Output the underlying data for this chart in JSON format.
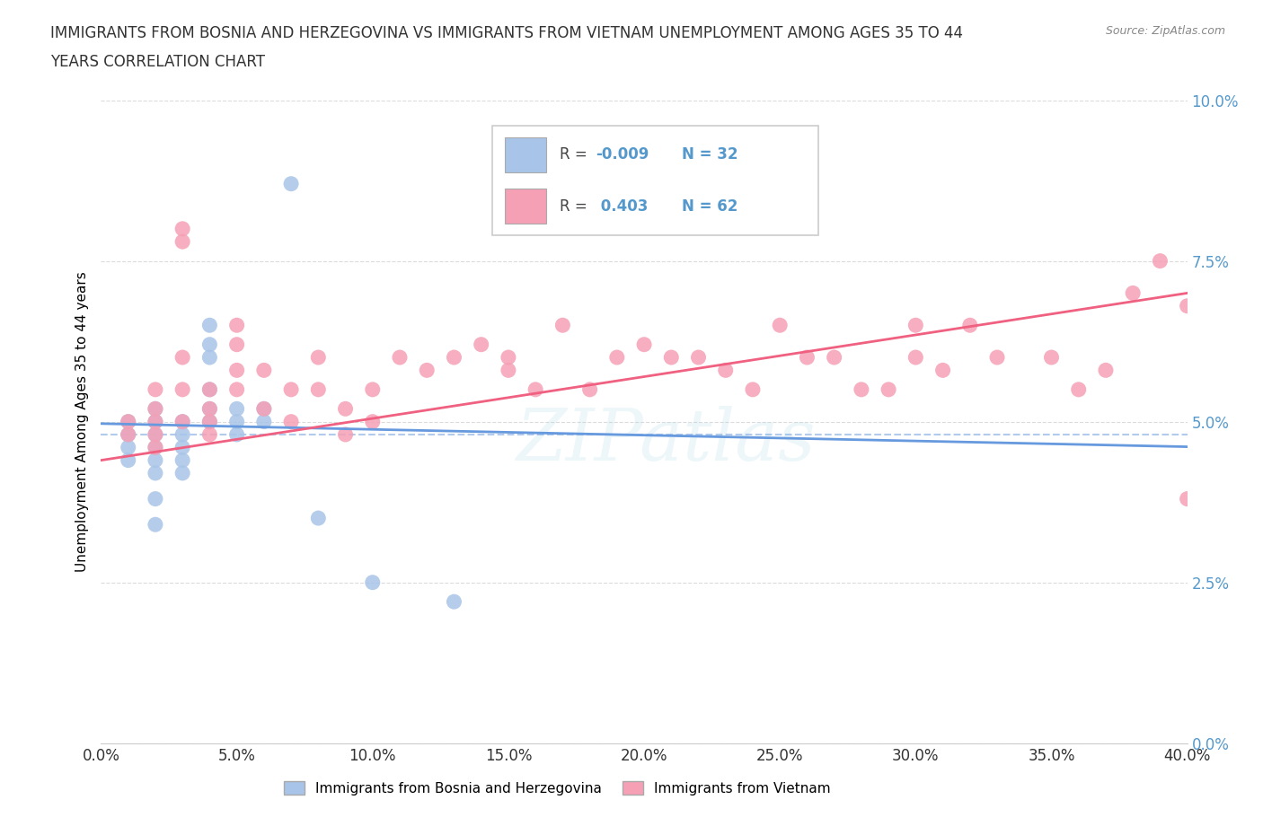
{
  "title": "IMMIGRANTS FROM BOSNIA AND HERZEGOVINA VS IMMIGRANTS FROM VIETNAM UNEMPLOYMENT AMONG AGES 35 TO 44\nYEARS CORRELATION CHART",
  "source_text": "Source: ZipAtlas.com",
  "ylabel": "Unemployment Among Ages 35 to 44 years",
  "xlim": [
    0.0,
    0.4
  ],
  "ylim": [
    0.0,
    0.1
  ],
  "xticks": [
    0.0,
    0.05,
    0.1,
    0.15,
    0.2,
    0.25,
    0.3,
    0.35,
    0.4
  ],
  "yticks": [
    0.0,
    0.025,
    0.05,
    0.075,
    0.1
  ],
  "bosnia_color": "#a8c4e8",
  "vietnam_color": "#f5a0b5",
  "bosnia_line_color": "#6699dd",
  "vietnam_line_color": "#f06080",
  "R_bosnia": -0.009,
  "N_bosnia": 32,
  "R_vietnam": 0.403,
  "N_vietnam": 62,
  "legend_label_bosnia": "Immigrants from Bosnia and Herzegovina",
  "legend_label_vietnam": "Immigrants from Vietnam",
  "watermark": "ZIPatlas",
  "bosnia_x": [
    0.01,
    0.01,
    0.01,
    0.01,
    0.02,
    0.02,
    0.02,
    0.02,
    0.02,
    0.02,
    0.02,
    0.02,
    0.03,
    0.03,
    0.03,
    0.03,
    0.03,
    0.04,
    0.04,
    0.04,
    0.04,
    0.04,
    0.04,
    0.05,
    0.05,
    0.05,
    0.06,
    0.06,
    0.07,
    0.08,
    0.1,
    0.13
  ],
  "bosnia_y": [
    0.05,
    0.048,
    0.046,
    0.044,
    0.052,
    0.05,
    0.048,
    0.046,
    0.044,
    0.042,
    0.038,
    0.034,
    0.05,
    0.048,
    0.046,
    0.044,
    0.042,
    0.065,
    0.062,
    0.06,
    0.055,
    0.052,
    0.05,
    0.052,
    0.05,
    0.048,
    0.052,
    0.05,
    0.087,
    0.035,
    0.025,
    0.022
  ],
  "vietnam_x": [
    0.01,
    0.01,
    0.02,
    0.02,
    0.02,
    0.02,
    0.02,
    0.03,
    0.03,
    0.03,
    0.03,
    0.03,
    0.04,
    0.04,
    0.04,
    0.04,
    0.05,
    0.05,
    0.05,
    0.05,
    0.06,
    0.06,
    0.07,
    0.07,
    0.08,
    0.08,
    0.09,
    0.09,
    0.1,
    0.1,
    0.11,
    0.12,
    0.13,
    0.14,
    0.15,
    0.15,
    0.16,
    0.17,
    0.18,
    0.19,
    0.2,
    0.21,
    0.22,
    0.23,
    0.24,
    0.25,
    0.26,
    0.27,
    0.28,
    0.29,
    0.3,
    0.3,
    0.31,
    0.32,
    0.33,
    0.35,
    0.36,
    0.37,
    0.38,
    0.39,
    0.4,
    0.4
  ],
  "vietnam_y": [
    0.05,
    0.048,
    0.055,
    0.052,
    0.05,
    0.048,
    0.046,
    0.08,
    0.078,
    0.06,
    0.055,
    0.05,
    0.055,
    0.052,
    0.05,
    0.048,
    0.065,
    0.062,
    0.058,
    0.055,
    0.058,
    0.052,
    0.055,
    0.05,
    0.06,
    0.055,
    0.052,
    0.048,
    0.055,
    0.05,
    0.06,
    0.058,
    0.06,
    0.062,
    0.06,
    0.058,
    0.055,
    0.065,
    0.055,
    0.06,
    0.062,
    0.06,
    0.06,
    0.058,
    0.055,
    0.065,
    0.06,
    0.06,
    0.055,
    0.055,
    0.06,
    0.065,
    0.058,
    0.065,
    0.06,
    0.06,
    0.055,
    0.058,
    0.07,
    0.075,
    0.038,
    0.068
  ],
  "bosnia_trend_x": [
    0.0,
    0.4
  ],
  "bosnia_trend_y": [
    0.0497,
    0.0461
  ],
  "vietnam_trend_x": [
    0.0,
    0.4
  ],
  "vietnam_trend_y": [
    0.044,
    0.07
  ],
  "grid_color": "#cccccc",
  "tick_color": "#5599cc",
  "background_color": "#ffffff"
}
